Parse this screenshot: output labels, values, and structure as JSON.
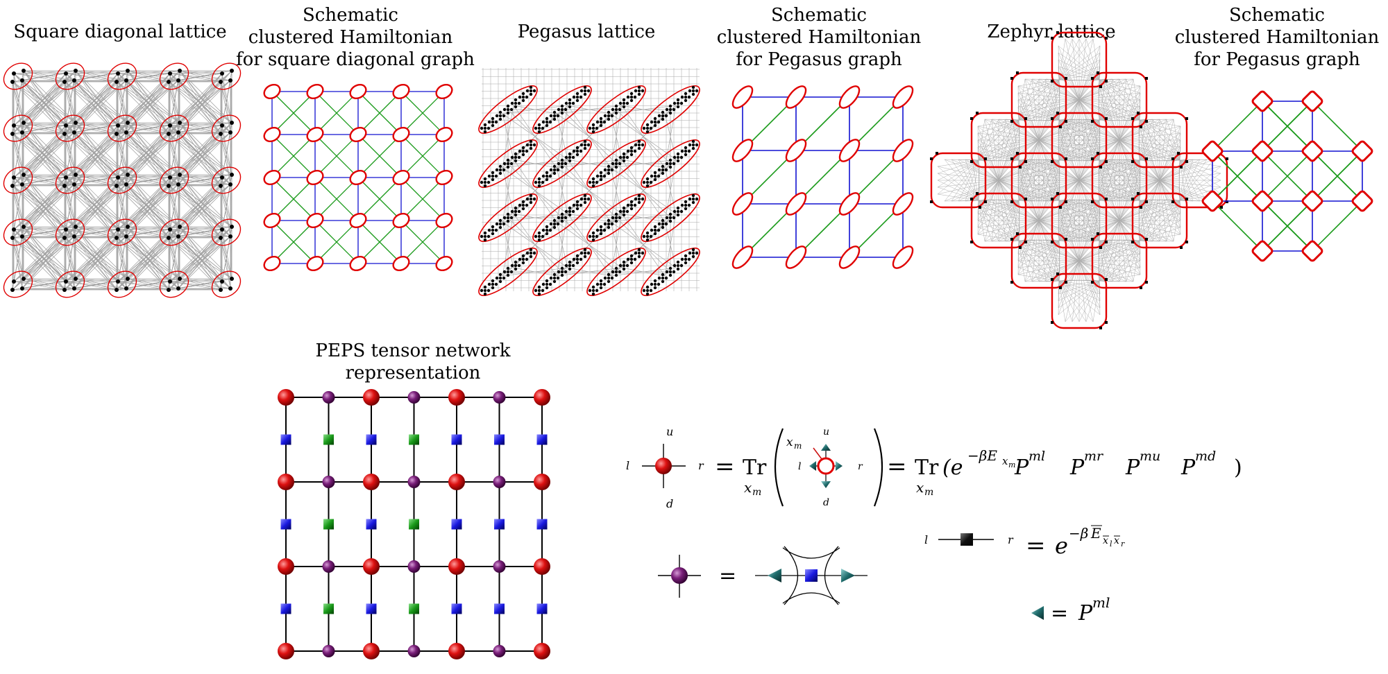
{
  "titles": {
    "square_diagonal_lattice": [
      "Square diagonal lattice"
    ],
    "schematic_square": [
      "Schematic",
      "clustered Hamiltonian",
      "for square diagonal graph"
    ],
    "pegasus_lattice": [
      "Pegasus lattice"
    ],
    "schematic_pegasus": [
      "Schematic",
      "clustered Hamiltonian",
      "for Pegasus graph"
    ],
    "zephyr_lattice": [
      "Zephyr lattice"
    ],
    "schematic_zephyr": [
      "Schematic",
      "clustered Hamiltonian",
      "for Pegasus graph"
    ],
    "peps": [
      "PEPS tensor network",
      "representation"
    ]
  },
  "labels": {
    "up": "u",
    "down": "d",
    "left": "l",
    "right": "r",
    "cluster_var": "x",
    "cluster_var_sub": "m",
    "equals": "=",
    "trace": "Tr",
    "trace_sub": "x",
    "trace_sub_index": "m",
    "rhs_trace_expr": "(e",
    "rhs_exponent": "−βE",
    "rhs_exponent_sub": "x",
    "rhs_exponent_subsub": "m",
    "projectors": [
      {
        "base": "P",
        "sup": "ml"
      },
      {
        "base": "P",
        "sup": "mr"
      },
      {
        "base": "P",
        "sup": "mu"
      },
      {
        "base": "P",
        "sup": "md"
      }
    ],
    "close_paren": ")",
    "edge_rhs_base": "e",
    "edge_rhs_exponent": "−β",
    "edge_rhs_E": "E",
    "edge_rhs_subscript": "x",
    "edge_rhs_sub_l": "l",
    "edge_rhs_sub_r": "r",
    "projector_base": "P",
    "projector_sup": "ml"
  },
  "colors": {
    "cluster_outline": "#e00000",
    "cluster_node": "#000000",
    "lattice_edge": "#9a9a9a",
    "schematic_grid": "#1010d0",
    "schematic_diagonal": "#1a9a1a",
    "site_tensor": "#cc1111",
    "virtual_tensor": "#7a1f7a",
    "edge_tensor_blue": "#1a1ae0",
    "edge_tensor_green": "#1a9a1a",
    "edge_tensor_black": "#000000",
    "projector": "#1f6b6b"
  }
}
